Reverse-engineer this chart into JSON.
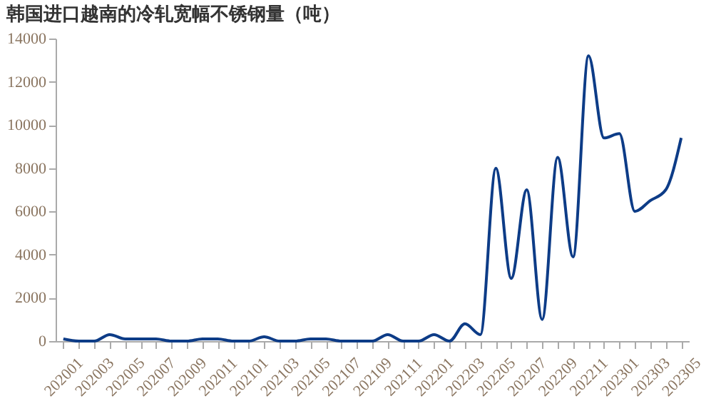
{
  "chart_data": {
    "type": "line",
    "title": "韩国进口越南的冷轧宽幅不锈钢量（吨）",
    "categories": [
      "202001",
      null,
      "202003",
      null,
      "202005",
      null,
      "202007",
      null,
      "202009",
      null,
      "202011",
      null,
      "202101",
      null,
      "202103",
      null,
      "202105",
      null,
      "202107",
      null,
      "202109",
      null,
      "202111",
      null,
      "202201",
      null,
      "202203",
      null,
      "202205",
      null,
      "202207",
      null,
      "202209",
      null,
      "202211",
      null,
      "202301",
      null,
      "202303",
      null,
      "202305"
    ],
    "series": [
      {
        "color": "#0d3c87",
        "values": [
          100,
          0,
          0,
          300,
          100,
          100,
          100,
          0,
          0,
          100,
          100,
          0,
          0,
          200,
          0,
          0,
          100,
          100,
          0,
          0,
          0,
          300,
          0,
          0,
          300,
          0,
          800,
          300,
          8000,
          2900,
          7000,
          1000,
          8500,
          3900,
          13200,
          9400,
          9600,
          6000,
          6500,
          7000,
          9400
        ]
      }
    ],
    "ylim": [
      0,
      14000
    ],
    "yticks": [
      0,
      2000,
      4000,
      6000,
      8000,
      10000,
      12000,
      14000
    ],
    "grid": false,
    "legend": false,
    "marker": "none",
    "line_style": "solid"
  }
}
